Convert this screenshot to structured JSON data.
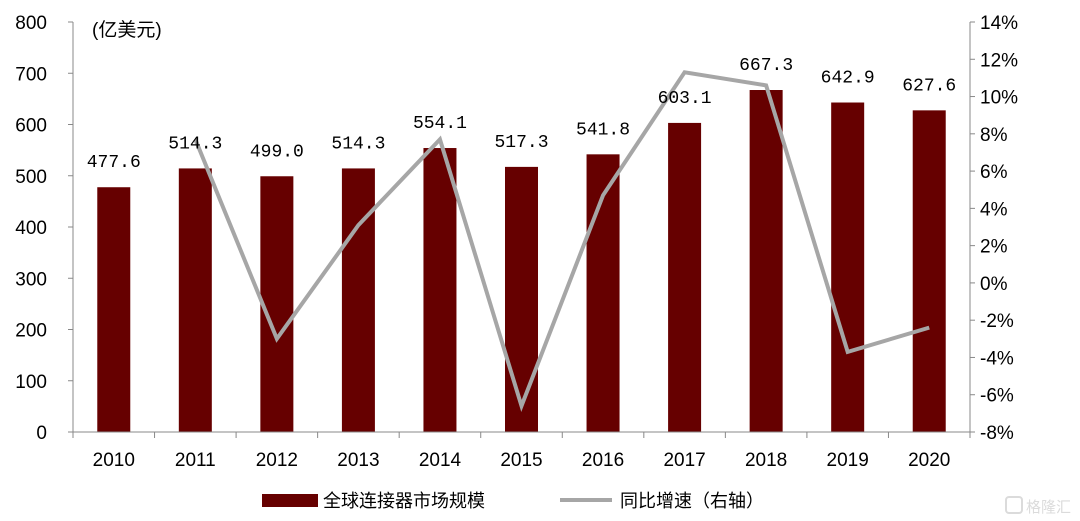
{
  "chart_data": {
    "type": "bar+line",
    "title": "",
    "unit_label": "(亿美元)",
    "categories": [
      "2010",
      "2011",
      "2012",
      "2013",
      "2014",
      "2015",
      "2016",
      "2017",
      "2018",
      "2019",
      "2020"
    ],
    "series": [
      {
        "name": "全球连接器市场规模",
        "type": "bar",
        "axis": "left",
        "color": "#660000",
        "values": [
          477.6,
          514.3,
          499.0,
          514.3,
          554.1,
          517.3,
          541.8,
          603.1,
          667.3,
          642.9,
          627.6
        ],
        "labels": [
          "477.6",
          "514.3",
          "499.0",
          "514.3",
          "554.1",
          "517.3",
          "541.8",
          "603.1",
          "667.3",
          "642.9",
          "627.6"
        ]
      },
      {
        "name": "同比增速（右轴）",
        "type": "line",
        "axis": "right",
        "color": "#a6a6a6",
        "values": [
          null,
          7.7,
          -3.0,
          3.1,
          7.7,
          -6.6,
          4.7,
          11.3,
          10.6,
          -3.7,
          -2.4
        ]
      }
    ],
    "y_left": {
      "lim": [
        0,
        800
      ],
      "ticks": [
        "0",
        "100",
        "200",
        "300",
        "400",
        "500",
        "600",
        "700",
        "800"
      ]
    },
    "y_right": {
      "lim": [
        -8,
        14
      ],
      "ticks": [
        "-8%",
        "-6%",
        "-4%",
        "-2%",
        "0%",
        "2%",
        "4%",
        "6%",
        "8%",
        "10%",
        "12%",
        "14%"
      ]
    },
    "legend_position": "bottom",
    "grid": false
  },
  "watermark": "格隆汇"
}
